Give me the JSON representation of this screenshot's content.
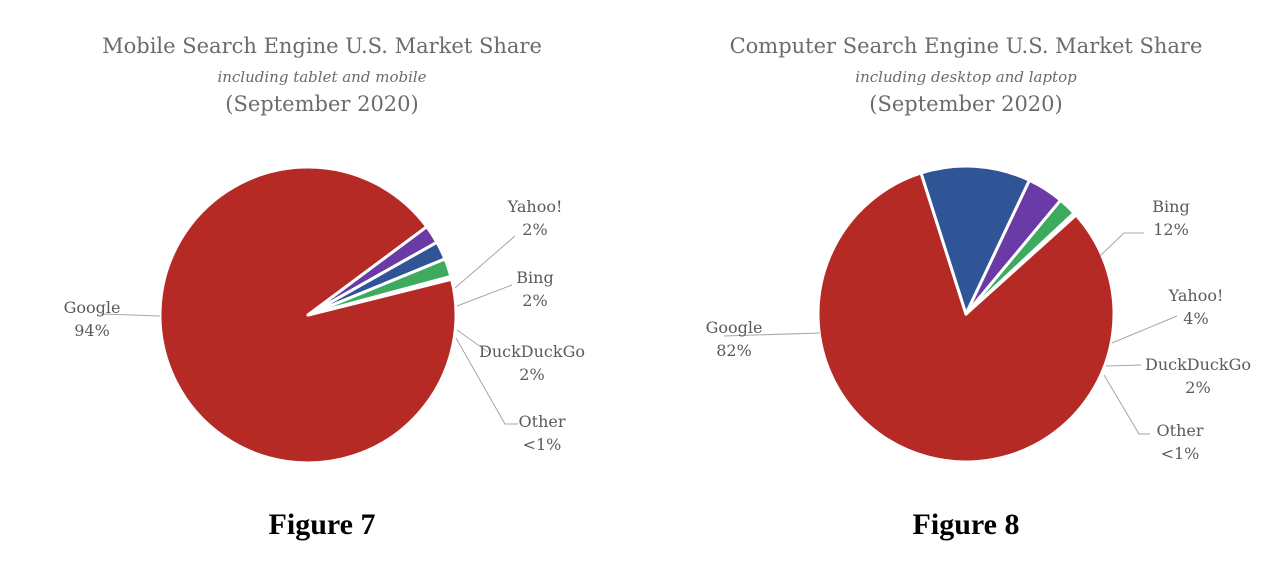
{
  "chart_data": [
    {
      "type": "pie",
      "title": "Mobile Search Engine U.S. Market Share",
      "subtitle": "including tablet and mobile",
      "period": "(September 2020)",
      "caption": "Figure 7",
      "slices": [
        {
          "name": "Google",
          "value": 94,
          "label": "94%",
          "color": "#b52a25"
        },
        {
          "name": "Yahoo!",
          "value": 2,
          "label": "2%",
          "color": "#6a3ba6"
        },
        {
          "name": "Bing",
          "value": 2,
          "label": "2%",
          "color": "#2f5597"
        },
        {
          "name": "DuckDuckGo",
          "value": 2,
          "label": "2%",
          "color": "#3daa5e"
        },
        {
          "name": "Other",
          "value": 0.3,
          "label": "<1%",
          "color": "#e8e8e8"
        }
      ]
    },
    {
      "type": "pie",
      "title": "Computer Search Engine U.S. Market Share",
      "subtitle": "including desktop and laptop",
      "period": "(September 2020)",
      "caption": "Figure 8",
      "slices": [
        {
          "name": "Google",
          "value": 82,
          "label": "82%",
          "color": "#b52a25"
        },
        {
          "name": "Bing",
          "value": 12,
          "label": "12%",
          "color": "#2f5597"
        },
        {
          "name": "Yahoo!",
          "value": 4,
          "label": "4%",
          "color": "#6a3ba6"
        },
        {
          "name": "DuckDuckGo",
          "value": 2,
          "label": "2%",
          "color": "#3daa5e"
        },
        {
          "name": "Other",
          "value": 0.3,
          "label": "<1%",
          "color": "#e8e8e8"
        }
      ]
    }
  ]
}
